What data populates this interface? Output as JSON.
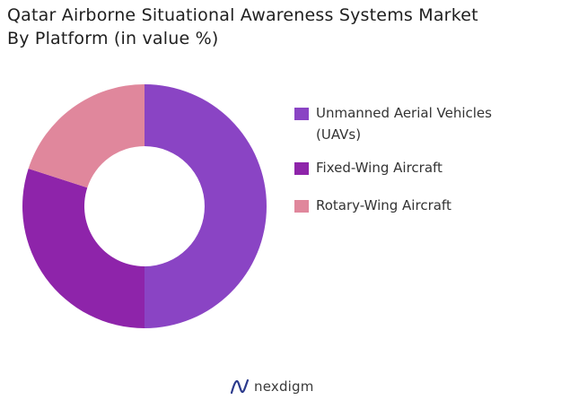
{
  "title_lines": [
    "Qatar Airborne Situational Awareness Systems Market",
    "By Platform  (in value %)"
  ],
  "chart_data": {
    "type": "pie",
    "variant": "donut",
    "title": "Qatar Airborne Situational Awareness Systems Market By Platform (in value %)",
    "categories": [
      "Unmanned Aerial Vehicles (UAVs)",
      "Fixed-Wing Aircraft",
      "Rotary-Wing Aircraft"
    ],
    "values": [
      50,
      30,
      20
    ],
    "colors": [
      "#8a44c4",
      "#8e24aa",
      "#e0879c"
    ],
    "legend_position": "right",
    "legend_labels": [
      [
        "Unmanned Aerial Vehicles",
        "(UAVs)"
      ],
      [
        "Fixed-Wing Aircraft"
      ],
      [
        "Rotary-Wing Aircraft"
      ]
    ]
  },
  "logo": {
    "text": "nexdigm",
    "icon": "nexdigm-logo-icon"
  }
}
